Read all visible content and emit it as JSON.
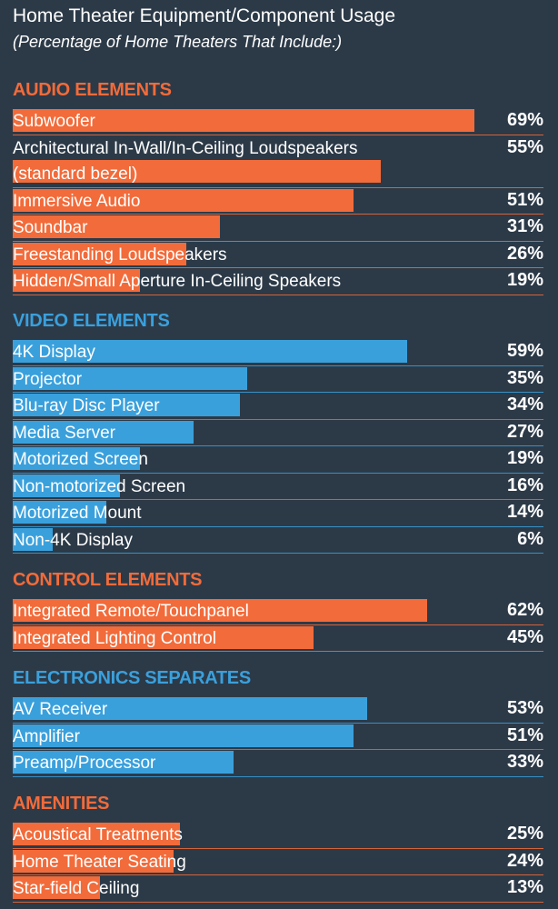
{
  "header": {
    "title": "Home Theater Equipment/Component Usage",
    "subtitle": "(Percentage of Home Theaters That Include:)"
  },
  "colors": {
    "background": "#2c3a48",
    "orange": "#f26b3a",
    "blue": "#3aa0dc"
  },
  "chart_data": {
    "type": "bar",
    "orientation": "horizontal",
    "title": "Home Theater Equipment/Component Usage",
    "subtitle": "(Percentage of Home Theaters That Include:)",
    "xlim": [
      0,
      69
    ],
    "grid": false,
    "sections": [
      {
        "name": "AUDIO ELEMENTS",
        "color": "#f26b3a",
        "items": [
          {
            "label": "Subwoofer",
            "value": 69,
            "display": "69%"
          },
          {
            "label": "Architectural In-Wall/In-Ceiling Loudspeakers",
            "label2": "(standard bezel)",
            "value": 55,
            "display": "55%"
          },
          {
            "label": "Immersive Audio",
            "value": 51,
            "display": "51%"
          },
          {
            "label": "Soundbar",
            "value": 31,
            "display": "31%"
          },
          {
            "label": "Freestanding Loudspeakers",
            "value": 26,
            "display": "26%"
          },
          {
            "label": "Hidden/Small Aperture In-Ceiling Speakers",
            "value": 19,
            "display": "19%"
          }
        ]
      },
      {
        "name": "VIDEO ELEMENTS",
        "color": "#3aa0dc",
        "items": [
          {
            "label": "4K Display",
            "value": 59,
            "display": "59%"
          },
          {
            "label": "Projector",
            "value": 35,
            "display": "35%"
          },
          {
            "label": "Blu-ray Disc Player",
            "value": 34,
            "display": "34%"
          },
          {
            "label": "Media Server",
            "value": 27,
            "display": "27%"
          },
          {
            "label": "Motorized Screen",
            "value": 19,
            "display": "19%"
          },
          {
            "label": "Non-motorized Screen",
            "value": 16,
            "display": "16%"
          },
          {
            "label": "Motorized Mount",
            "value": 14,
            "display": "14%"
          },
          {
            "label": "Non-4K Display",
            "value": 6,
            "display": "6%"
          }
        ]
      },
      {
        "name": "CONTROL ELEMENTS",
        "color": "#f26b3a",
        "items": [
          {
            "label": "Integrated Remote/Touchpanel",
            "value": 62,
            "display": "62%"
          },
          {
            "label": "Integrated Lighting Control",
            "value": 45,
            "display": "45%"
          }
        ]
      },
      {
        "name": "ELECTRONICS SEPARATES",
        "color": "#3aa0dc",
        "items": [
          {
            "label": "AV Receiver",
            "value": 53,
            "display": "53%"
          },
          {
            "label": "Amplifier",
            "value": 51,
            "display": "51%"
          },
          {
            "label": "Preamp/Processor",
            "value": 33,
            "display": "33%"
          }
        ]
      },
      {
        "name": "AMENITIES",
        "color": "#f26b3a",
        "items": [
          {
            "label": "Acoustical Treatments",
            "value": 25,
            "display": "25%"
          },
          {
            "label": "Home Theater Seating",
            "value": 24,
            "display": "24%"
          },
          {
            "label": "Star-field Ceiling",
            "value": 13,
            "display": "13%"
          }
        ]
      }
    ]
  }
}
